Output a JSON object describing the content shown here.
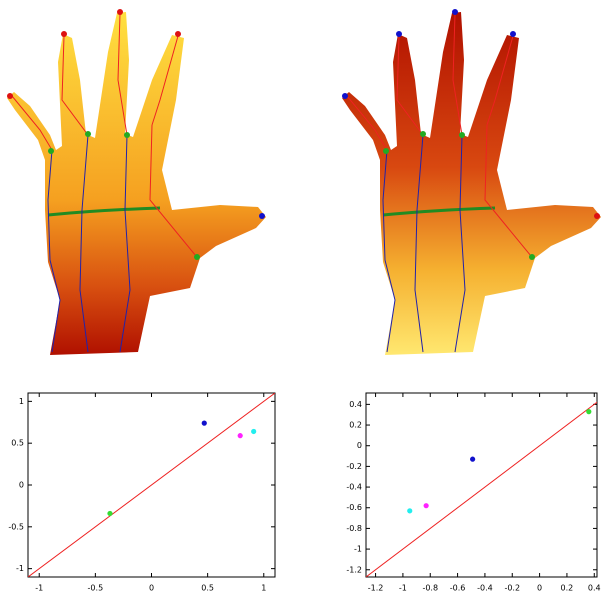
{
  "chart_data": [
    {
      "type": "scatter",
      "x": [
        -0.37,
        0.47,
        0.79,
        0.91
      ],
      "y": [
        -0.34,
        0.74,
        0.59,
        0.64
      ],
      "colors": [
        "#33dd33",
        "#1111cc",
        "#ff22ff",
        "#22eeee"
      ],
      "line_color": "#ee2222",
      "xlim": [
        -1.1,
        1.1
      ],
      "ylim": [
        -1.1,
        1.1
      ],
      "xticks": [
        -1,
        -0.5,
        0,
        0.5,
        1
      ],
      "yticks": [
        -1,
        -0.5,
        0,
        0.5,
        1
      ]
    },
    {
      "type": "scatter",
      "x": [
        0.36,
        -0.49,
        -0.95,
        -0.83
      ],
      "y": [
        0.33,
        -0.13,
        -0.63,
        -0.58
      ],
      "colors": [
        "#33dd33",
        "#1111cc",
        "#22eeee",
        "#ff22ff"
      ],
      "line_color": "#ee2222",
      "xlim": [
        -1.27,
        0.42
      ],
      "ylim": [
        -1.27,
        0.51
      ],
      "xticks": [
        -1.2,
        -1,
        -0.8,
        -0.6,
        -0.4,
        -0.2,
        0,
        0.2,
        0.4
      ],
      "yticks": [
        -1.2,
        -1,
        -0.8,
        -0.6,
        -0.4,
        -0.2,
        0,
        0.2,
        0.4
      ]
    }
  ]
}
